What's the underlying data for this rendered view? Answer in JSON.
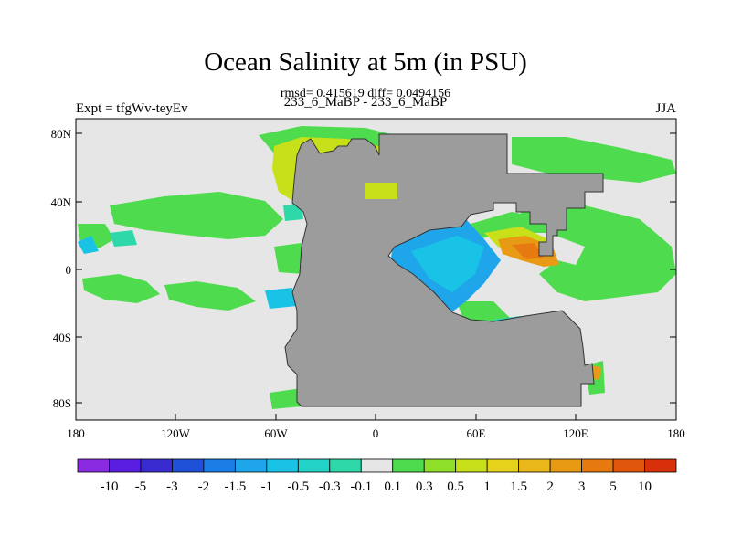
{
  "header": {
    "title": "Ocean Salinity at 5m (in PSU)",
    "stats": "rmsd= 0.415619 diff= 0.0494156",
    "runs": "233_6_MaBP - 233_6_MaBP",
    "experiment": "Expt = tfgWv-teyEv",
    "season": "JJA"
  },
  "axes": {
    "lat_ticks": [
      "80N",
      "40N",
      "0",
      "40S",
      "80S"
    ],
    "lon_ticks": [
      "180",
      "120W",
      "60W",
      "0",
      "60E",
      "120E",
      "180"
    ]
  },
  "colorbar": {
    "labels": [
      "-10",
      "-5",
      "-3",
      "-2",
      "-1.5",
      "-1",
      "-0.5",
      "-0.3",
      "-0.1",
      "0.1",
      "0.3",
      "0.5",
      "1",
      "1.5",
      "2",
      "3",
      "5",
      "10"
    ],
    "colors": [
      "#8a2be2",
      "#5a1ee0",
      "#3a2bd0",
      "#1f50d8",
      "#1b7ee6",
      "#1fa6ea",
      "#19c3e6",
      "#22d3c8",
      "#2ed8a8",
      "#e6e6e6",
      "#4edc4e",
      "#8ee02a",
      "#c8e01a",
      "#e6d21a",
      "#eab81a",
      "#e89a14",
      "#e67a10",
      "#e0560c",
      "#d8300a"
    ]
  },
  "colors": {
    "land": "#9c9c9c",
    "ocean_background": "#e6e6e6"
  }
}
